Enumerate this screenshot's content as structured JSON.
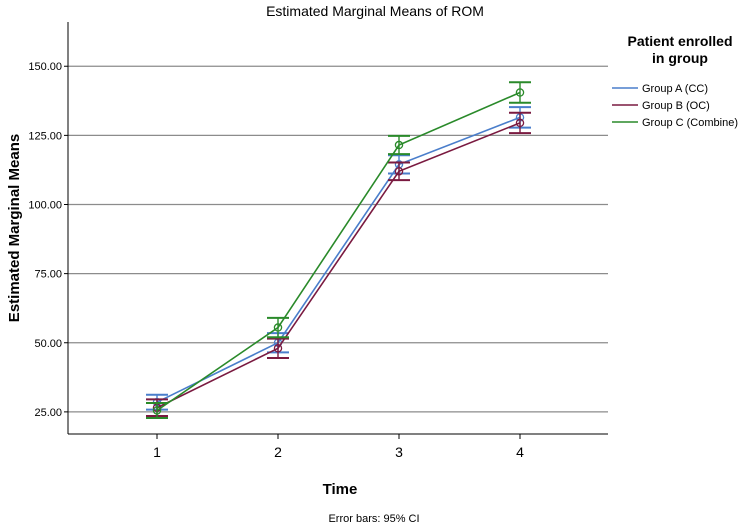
{
  "chart_data": {
    "type": "line",
    "title": "Estimated Marginal Means of ROM",
    "xlabel": "Time",
    "ylabel": "Estimated Marginal Means",
    "categories": [
      "1",
      "2",
      "3",
      "4"
    ],
    "yticks": [
      "25.00",
      "50.00",
      "75.00",
      "100.00",
      "125.00",
      "150.00"
    ],
    "ylim": [
      17,
      166
    ],
    "grid": true,
    "legend_title_line1": "Patient enrolled",
    "legend_title_line2": "in group",
    "legend_position": "right",
    "footnote": "Error bars: 95% CI",
    "series": [
      {
        "name": "Group A (CC)",
        "color": "#4a7ecb",
        "values": [
          28.5,
          50,
          114.5,
          131.5
        ],
        "ci_low": [
          25.8,
          46.5,
          111.2,
          127.8
        ],
        "ci_high": [
          31.2,
          53.5,
          117.8,
          135.2
        ]
      },
      {
        "name": "Group B (OC)",
        "color": "#7a1a40",
        "values": [
          26.5,
          48,
          112,
          129.5
        ],
        "ci_low": [
          23.5,
          44.5,
          108.8,
          125.8
        ],
        "ci_high": [
          29.5,
          51.5,
          115.2,
          133.2
        ]
      },
      {
        "name": "Group C (Combine)",
        "color": "#2a8a2a",
        "values": [
          25.5,
          55.5,
          121.5,
          140.5
        ],
        "ci_low": [
          22.8,
          52.0,
          118.2,
          136.8
        ],
        "ci_high": [
          28.2,
          59.0,
          124.8,
          144.2
        ]
      }
    ]
  }
}
